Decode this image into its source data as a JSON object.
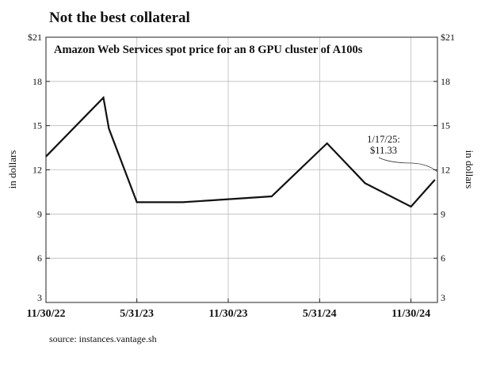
{
  "chart_data": {
    "type": "line",
    "title": "Not the best collateral",
    "subtitle": "Amazon Web Services spot price for an 8 GPU cluster of A100s",
    "ylabel": "in dollars",
    "ylabel_right": "in dollars",
    "source": "source: instances.vantage.sh",
    "ylim": [
      3,
      21
    ],
    "xlim": [
      "2022-11-30",
      "2025-01-22"
    ],
    "y_ticks": [
      "$21",
      "18",
      "15",
      "12",
      "9",
      "6",
      "3"
    ],
    "y_tick_values": [
      21,
      18,
      15,
      12,
      9,
      6,
      3
    ],
    "x_ticks": [
      {
        "label": "11/30/22",
        "date": "2022-11-30"
      },
      {
        "label": "5/31/23",
        "date": "2023-05-31"
      },
      {
        "label": "11/30/23",
        "date": "2023-11-30"
      },
      {
        "label": "5/31/24",
        "date": "2024-05-31"
      },
      {
        "label": "11/30/24",
        "date": "2024-11-30"
      }
    ],
    "grid": true,
    "series": [
      {
        "points": [
          {
            "x": "2022-11-30",
            "y": 12.9
          },
          {
            "x": "2023-03-25",
            "y": 16.9
          },
          {
            "x": "2023-04-05",
            "y": 14.8
          },
          {
            "x": "2023-05-31",
            "y": 9.8
          },
          {
            "x": "2023-08-31",
            "y": 9.8
          },
          {
            "x": "2024-02-25",
            "y": 10.2
          },
          {
            "x": "2024-06-15",
            "y": 13.8
          },
          {
            "x": "2024-08-30",
            "y": 11.1
          },
          {
            "x": "2024-11-30",
            "y": 9.5
          },
          {
            "x": "2025-01-17",
            "y": 11.33
          }
        ]
      }
    ],
    "annotation": {
      "line1": "1/17/25:",
      "line2": "$11.33",
      "x": "2025-01-17",
      "y": 11.33
    }
  }
}
